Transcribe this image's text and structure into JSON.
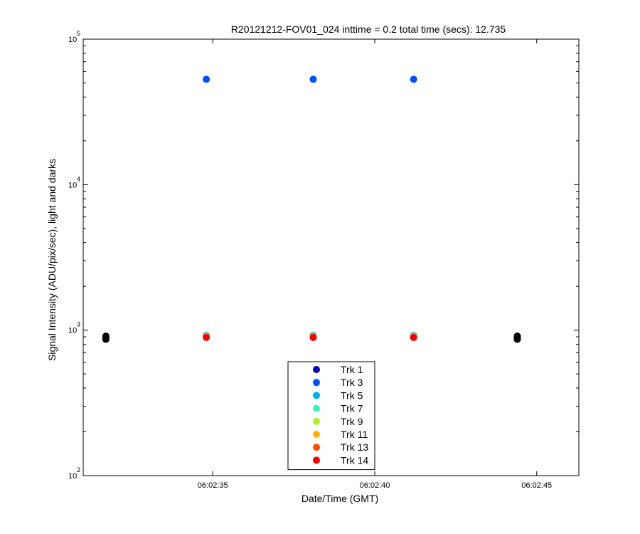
{
  "chart_data": {
    "type": "scatter",
    "title": "R20121212-FOV01_024 inttime = 0.2 total time (secs): 12.735",
    "xlabel": "Date/Time (GMT)",
    "ylabel": "Signal Intensity (ADU/pix/sec), light and darks",
    "y_scale": "log",
    "ylim": [
      100,
      100000
    ],
    "xlim": [
      "06:02:31.0",
      "06:02:46.3"
    ],
    "x_ticks": [
      "06:02:35",
      "06:02:40",
      "06:02:45"
    ],
    "y_ticks": [
      {
        "value": 100,
        "base": "10",
        "exp": "2"
      },
      {
        "value": 1000,
        "base": "10",
        "exp": "3"
      },
      {
        "value": 10000,
        "base": "10",
        "exp": "4"
      },
      {
        "value": 100000,
        "base": "10",
        "exp": "5"
      }
    ],
    "grid": false,
    "legend_position": "bottom-center",
    "series": [
      {
        "name": "Trk 1",
        "color": "#0000b0",
        "x": [
          "06:02:34.8",
          "06:02:38.1",
          "06:02:41.2"
        ],
        "y": [
          920,
          920,
          920
        ]
      },
      {
        "name": "Trk 3",
        "color": "#0050ff",
        "x": [
          "06:02:34.8",
          "06:02:38.1",
          "06:02:41.2"
        ],
        "y": [
          53000,
          53000,
          53000
        ]
      },
      {
        "name": "Trk 5",
        "color": "#00b0f0",
        "x": [
          "06:02:34.8",
          "06:02:38.1",
          "06:02:41.2"
        ],
        "y": [
          920,
          920,
          920
        ]
      },
      {
        "name": "Trk 7",
        "color": "#40f0c0",
        "x": [
          "06:02:34.8",
          "06:02:38.1",
          "06:02:41.2"
        ],
        "y": [
          910,
          910,
          910
        ]
      },
      {
        "name": "Trk 9",
        "color": "#b0f030",
        "x": [
          "06:02:34.8",
          "06:02:38.1",
          "06:02:41.2"
        ],
        "y": [
          905,
          905,
          905
        ]
      },
      {
        "name": "Trk 11",
        "color": "#ffb000",
        "x": [
          "06:02:34.8",
          "06:02:38.1",
          "06:02:41.2"
        ],
        "y": [
          900,
          900,
          900
        ]
      },
      {
        "name": "Trk 13",
        "color": "#ff5000",
        "x": [
          "06:02:34.8",
          "06:02:38.1",
          "06:02:41.2"
        ],
        "y": [
          895,
          895,
          895
        ]
      },
      {
        "name": "Trk 14",
        "color": "#f00000",
        "x": [
          "06:02:34.8",
          "06:02:38.1",
          "06:02:41.2"
        ],
        "y": [
          890,
          890,
          890
        ]
      }
    ],
    "dark_points": {
      "color": "#000000",
      "x": [
        "06:02:31.7",
        "06:02:31.7",
        "06:02:31.7",
        "06:02:31.7",
        "06:02:44.4",
        "06:02:44.4",
        "06:02:44.4",
        "06:02:44.4"
      ],
      "y": [
        910,
        895,
        880,
        865,
        910,
        895,
        880,
        865
      ]
    }
  }
}
